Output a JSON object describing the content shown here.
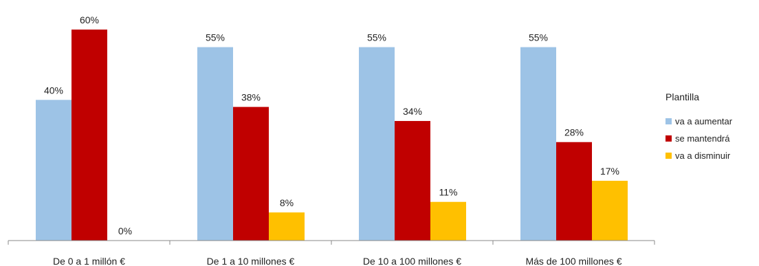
{
  "chart_data": {
    "type": "bar",
    "categories": [
      "De 0 a 1 millón €",
      "De 1 a 10 millones €",
      "De 10 a 100 millones €",
      "Más de 100 millones €"
    ],
    "series": [
      {
        "name": "va a aumentar",
        "color": "#9DC3E6",
        "values": [
          40,
          55,
          55,
          55
        ]
      },
      {
        "name": "se mantendrá",
        "color": "#C00000",
        "values": [
          60,
          38,
          34,
          28
        ]
      },
      {
        "name": "va a disminuir",
        "color": "#FFC000",
        "values": [
          0,
          8,
          11,
          17
        ]
      }
    ],
    "value_suffix": "%",
    "legend": {
      "title": "Plantilla",
      "position": "right"
    },
    "ylim": [
      0,
      60
    ],
    "grid": false
  }
}
